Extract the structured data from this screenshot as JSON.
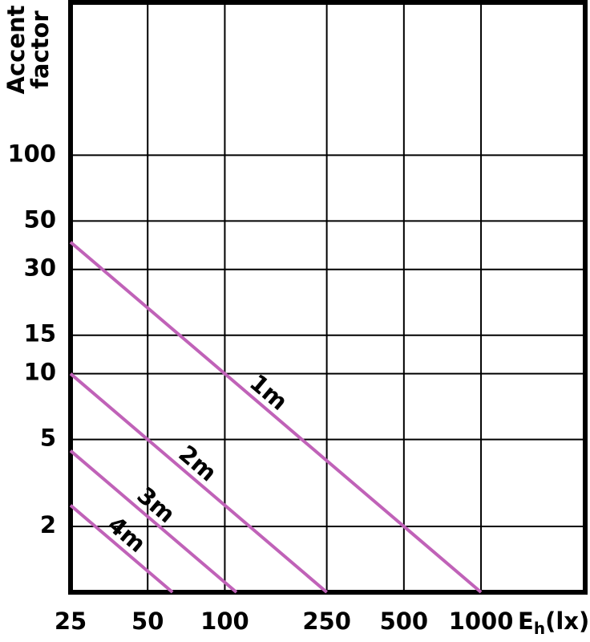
{
  "chart_data": {
    "type": "line",
    "ylabel": [
      "Accent",
      "factor"
    ],
    "xlabel": {
      "main": "E",
      "sub": "h",
      "unit": "(lx)"
    },
    "log_x": true,
    "log_y": true,
    "grid": true,
    "xlim": [
      25,
      2550
    ],
    "ylim": [
      1,
      500
    ],
    "xticks": [
      25,
      50,
      100,
      250,
      500,
      1000
    ],
    "yticks": [
      2,
      5,
      10,
      15,
      30,
      50,
      100
    ],
    "series": [
      {
        "name": "1m",
        "color": "#c062b8",
        "x": [
          25,
          1000
        ],
        "values": [
          40,
          1
        ]
      },
      {
        "name": "2m",
        "color": "#c062b8",
        "x": [
          25,
          250
        ],
        "values": [
          10,
          1
        ]
      },
      {
        "name": "3m",
        "color": "#c062b8",
        "x": [
          25,
          111
        ],
        "values": [
          4.44,
          1
        ]
      },
      {
        "name": "4m",
        "color": "#c062b8",
        "x": [
          25,
          62.5
        ],
        "values": [
          2.5,
          1
        ]
      }
    ]
  }
}
